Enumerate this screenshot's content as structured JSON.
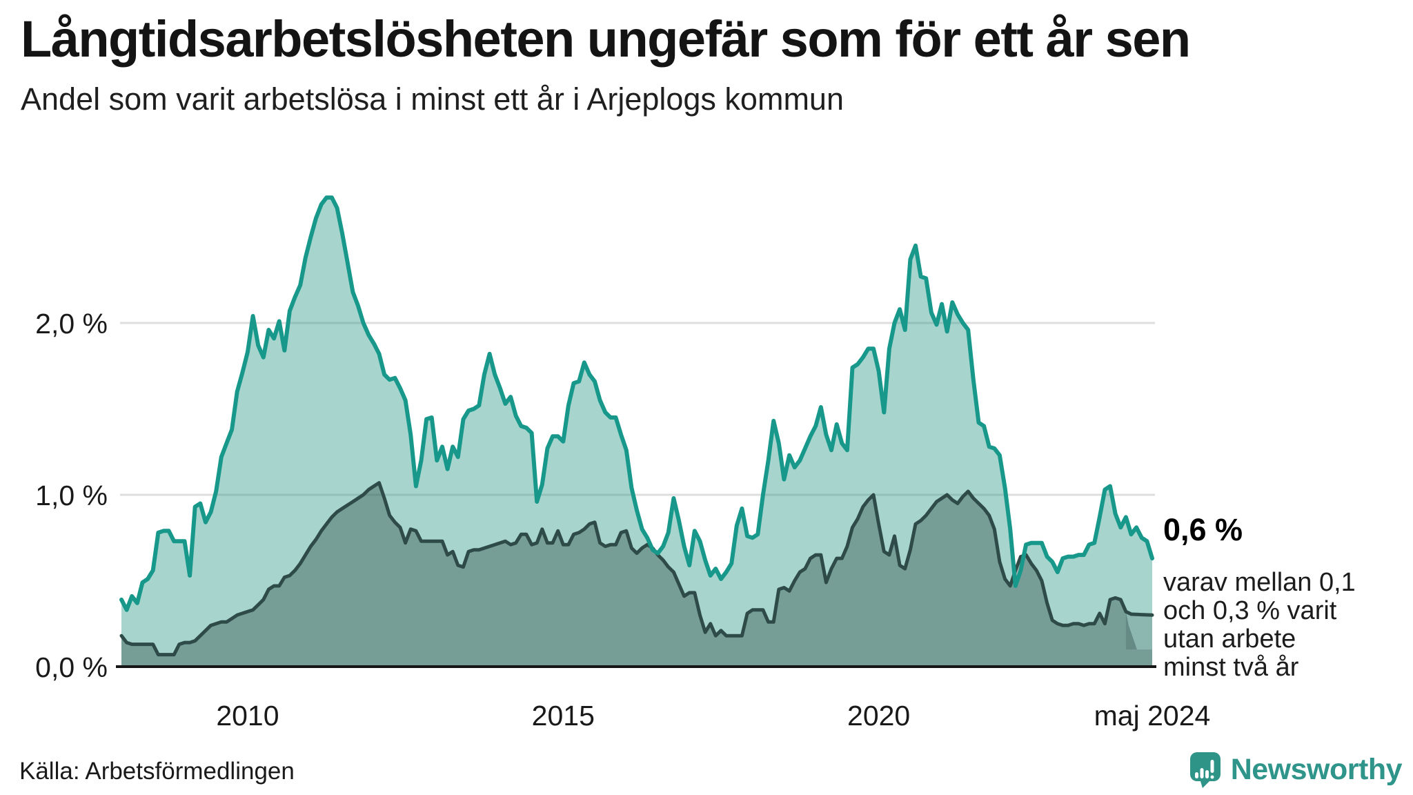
{
  "header": {
    "title": "Långtidsarbetslösheten ungefär som för ett år sen",
    "subtitle": "Andel som varit arbetslösa i minst ett år i Arjeplogs kommun"
  },
  "annotation": {
    "value": "0,6 %",
    "note_lines": [
      "varav mellan 0,1",
      "och 0,3 % varit",
      "utan arbete",
      "minst två år"
    ]
  },
  "footer": {
    "source": "Källa: Arbetsförmedlingen",
    "logo_text": "Newsworthy"
  },
  "colors": {
    "teal_line": "#17988B",
    "teal_fill": "rgba(35,150,132,0.40)",
    "dark_line": "#2E4B47",
    "dark_fill": "rgba(46,75,71,0.40)",
    "band_fill": "rgba(46,75,71,0.22)",
    "grid": "#DEDEDE",
    "axis": "#161616",
    "tick_text": "#191919",
    "logo_teal": "#2F948A"
  },
  "chart_data": {
    "type": "area",
    "unit": "%",
    "frequency": "monthly",
    "start_month": "2008-01",
    "end_month": "2024-05",
    "ylim": [
      0,
      2.9
    ],
    "grid": "on",
    "legend_position": "none",
    "y_axis": {
      "ticks": [
        {
          "value": 2,
          "label": "2,0 %"
        },
        {
          "value": 1,
          "label": "1,0 %"
        },
        {
          "value": 0,
          "label": "0,0 %"
        }
      ]
    },
    "x_axis": {
      "ticks": [
        {
          "label": "2010",
          "month_index": 24
        },
        {
          "label": "2015",
          "month_index": 84
        },
        {
          "label": "2020",
          "month_index": 144
        },
        {
          "label": "maj 2024",
          "month_index": 196
        }
      ]
    },
    "series": [
      {
        "name": "Andel som varit arbetslösa i minst ett år",
        "final_label": "0,6 %",
        "values": [
          0.39,
          0.33,
          0.41,
          0.37,
          0.49,
          0.51,
          0.56,
          0.78,
          0.79,
          0.79,
          0.73,
          0.73,
          0.73,
          0.53,
          0.93,
          0.95,
          0.84,
          0.9,
          1.02,
          1.22,
          1.3,
          1.38,
          1.6,
          1.71,
          1.83,
          2.04,
          1.87,
          1.8,
          1.96,
          1.91,
          2.01,
          1.84,
          2.07,
          2.15,
          2.22,
          2.38,
          2.5,
          2.61,
          2.69,
          2.73,
          2.73,
          2.67,
          2.52,
          2.35,
          2.18,
          2.1,
          2.0,
          1.93,
          1.88,
          1.82,
          1.7,
          1.67,
          1.68,
          1.62,
          1.55,
          1.35,
          1.05,
          1.2,
          1.44,
          1.45,
          1.2,
          1.28,
          1.15,
          1.28,
          1.22,
          1.44,
          1.49,
          1.5,
          1.52,
          1.7,
          1.82,
          1.7,
          1.62,
          1.53,
          1.57,
          1.46,
          1.4,
          1.39,
          1.36,
          0.96,
          1.06,
          1.27,
          1.34,
          1.34,
          1.31,
          1.52,
          1.65,
          1.66,
          1.77,
          1.7,
          1.66,
          1.55,
          1.48,
          1.45,
          1.45,
          1.35,
          1.26,
          1.04,
          0.91,
          0.8,
          0.75,
          0.68,
          0.66,
          0.7,
          0.78,
          0.98,
          0.85,
          0.7,
          0.59,
          0.79,
          0.73,
          0.62,
          0.53,
          0.57,
          0.51,
          0.55,
          0.6,
          0.82,
          0.92,
          0.76,
          0.75,
          0.77,
          1.0,
          1.2,
          1.43,
          1.3,
          1.09,
          1.23,
          1.16,
          1.2,
          1.27,
          1.34,
          1.4,
          1.51,
          1.35,
          1.26,
          1.41,
          1.3,
          1.26,
          1.74,
          1.76,
          1.8,
          1.85,
          1.85,
          1.72,
          1.48,
          1.85,
          2.0,
          2.08,
          1.96,
          2.37,
          2.45,
          2.27,
          2.26,
          2.06,
          1.99,
          2.11,
          1.95,
          2.12,
          2.05,
          2.0,
          1.96,
          1.67,
          1.42,
          1.4,
          1.28,
          1.27,
          1.23,
          1.04,
          0.8,
          0.47,
          0.56,
          0.71,
          0.72,
          0.72,
          0.72,
          0.64,
          0.61,
          0.55,
          0.63,
          0.64,
          0.64,
          0.65,
          0.65,
          0.71,
          0.72,
          0.87,
          1.03,
          1.05,
          0.89,
          0.81,
          0.87,
          0.77,
          0.81,
          0.75,
          0.73,
          0.63
        ]
      },
      {
        "name": "varav utan arbete minst två år",
        "censored_range": {
          "low": 0.1,
          "high": 0.3,
          "note": "mellan 0,1 och 0,3 %"
        },
        "values": [
          0.18,
          0.14,
          0.13,
          0.13,
          0.13,
          0.13,
          0.13,
          0.07,
          0.07,
          0.07,
          0.07,
          0.13,
          0.14,
          0.14,
          0.15,
          0.18,
          0.21,
          0.24,
          0.25,
          0.26,
          0.26,
          0.28,
          0.3,
          0.31,
          0.32,
          0.33,
          0.36,
          0.39,
          0.45,
          0.47,
          0.47,
          0.52,
          0.53,
          0.56,
          0.6,
          0.65,
          0.7,
          0.74,
          0.79,
          0.83,
          0.87,
          0.9,
          0.92,
          0.94,
          0.96,
          0.98,
          1.0,
          1.03,
          1.05,
          1.07,
          0.98,
          0.88,
          0.84,
          0.81,
          0.72,
          0.8,
          0.79,
          0.73,
          0.73,
          0.73,
          0.73,
          0.73,
          0.65,
          0.67,
          0.59,
          0.58,
          0.67,
          0.68,
          0.68,
          0.69,
          0.7,
          0.71,
          0.72,
          0.73,
          0.71,
          0.72,
          0.77,
          0.77,
          0.71,
          0.72,
          0.8,
          0.72,
          0.72,
          0.79,
          0.71,
          0.71,
          0.77,
          0.78,
          0.8,
          0.83,
          0.84,
          0.72,
          0.7,
          0.71,
          0.71,
          0.78,
          0.79,
          0.69,
          0.66,
          0.69,
          0.71,
          0.69,
          0.65,
          0.62,
          0.58,
          0.55,
          0.48,
          0.41,
          0.43,
          0.43,
          0.3,
          0.2,
          0.25,
          0.18,
          0.21,
          0.18,
          0.18,
          0.18,
          0.18,
          0.31,
          0.33,
          0.33,
          0.33,
          0.26,
          0.26,
          0.45,
          0.46,
          0.44,
          0.5,
          0.55,
          0.57,
          0.63,
          0.65,
          0.65,
          0.49,
          0.57,
          0.63,
          0.63,
          0.7,
          0.81,
          0.86,
          0.93,
          0.97,
          1.0,
          0.83,
          0.67,
          0.65,
          0.76,
          0.59,
          0.57,
          0.68,
          0.83,
          0.85,
          0.88,
          0.92,
          0.96,
          0.98,
          1.0,
          0.97,
          0.95,
          0.99,
          1.02,
          0.98,
          0.95,
          0.92,
          0.88,
          0.8,
          0.61,
          0.51,
          0.47,
          0.56,
          0.64,
          0.65,
          0.6,
          0.56,
          0.5,
          0.37,
          0.27,
          0.25,
          0.24,
          0.24,
          0.25,
          0.25,
          0.24,
          0.25,
          0.25,
          0.31,
          0.25,
          0.39,
          0.4,
          0.39,
          0.32,
          null,
          null,
          null,
          null,
          null
        ]
      }
    ]
  }
}
